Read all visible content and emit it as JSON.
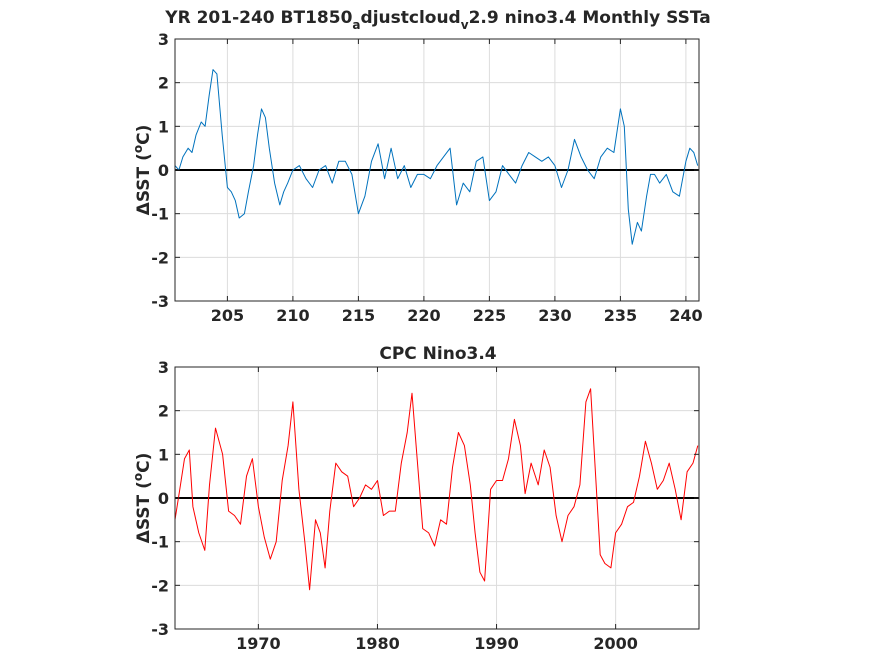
{
  "chart_data": [
    {
      "type": "line",
      "title_parts": [
        "YR 201-240 BT1850",
        "a",
        "djustcloud",
        "v",
        "2.9 nino3.4 Monthly SSTa"
      ],
      "ylabel": {
        "delta": "Δ",
        "main": "SST (",
        "sup": "o",
        "tail": "C)"
      },
      "xlim": [
        201,
        241
      ],
      "ylim": [
        -3,
        3
      ],
      "xticks": [
        "205",
        "210",
        "215",
        "220",
        "225",
        "230",
        "235",
        "240"
      ],
      "yticks": [
        "3",
        "2",
        "1",
        "0",
        "-1",
        "-2",
        "-3"
      ],
      "grid": true,
      "zero_line": true,
      "color": "#0072bd",
      "series": [
        {
          "x": [
            201.0,
            201.3,
            201.6,
            202.0,
            202.3,
            202.6,
            203.0,
            203.3,
            203.6,
            203.9,
            204.2,
            204.6,
            205.0,
            205.3,
            205.6,
            205.9,
            206.3,
            206.6,
            207.0,
            207.3,
            207.6,
            207.9,
            208.2,
            208.6,
            209.0,
            209.3,
            209.6,
            210.0,
            210.5,
            211.0,
            211.5,
            212.0,
            212.5,
            213.0,
            213.5,
            214.0,
            214.5,
            215.0,
            215.5,
            216.0,
            216.5,
            217.0,
            217.5,
            218.0,
            218.5,
            219.0,
            219.5,
            220.0,
            220.5,
            221.0,
            221.5,
            222.0,
            222.5,
            223.0,
            223.5,
            224.0,
            224.5,
            225.0,
            225.5,
            226.0,
            226.5,
            227.0,
            227.5,
            228.0,
            228.5,
            229.0,
            229.5,
            230.0,
            230.5,
            231.0,
            231.5,
            232.0,
            232.5,
            233.0,
            233.5,
            234.0,
            234.5,
            235.0,
            235.3,
            235.6,
            235.9,
            236.3,
            236.6,
            237.0,
            237.3,
            237.6,
            238.0,
            238.5,
            239.0,
            239.5,
            240.0,
            240.3,
            240.6,
            240.9
          ],
          "y": [
            0.1,
            0.0,
            0.3,
            0.5,
            0.4,
            0.8,
            1.1,
            1.0,
            1.7,
            2.3,
            2.2,
            0.8,
            -0.4,
            -0.5,
            -0.7,
            -1.1,
            -1.0,
            -0.5,
            0.1,
            0.8,
            1.4,
            1.2,
            0.5,
            -0.3,
            -0.8,
            -0.5,
            -0.3,
            0.0,
            0.1,
            -0.2,
            -0.4,
            0.0,
            0.1,
            -0.3,
            0.2,
            0.2,
            -0.1,
            -1.0,
            -0.6,
            0.2,
            0.6,
            -0.2,
            0.5,
            -0.2,
            0.1,
            -0.4,
            -0.1,
            -0.1,
            -0.2,
            0.1,
            0.3,
            0.5,
            -0.8,
            -0.3,
            -0.5,
            0.2,
            0.3,
            -0.7,
            -0.5,
            0.1,
            -0.1,
            -0.3,
            0.1,
            0.4,
            0.3,
            0.2,
            0.3,
            0.1,
            -0.4,
            0.0,
            0.7,
            0.3,
            0.0,
            -0.2,
            0.3,
            0.5,
            0.4,
            1.4,
            1.0,
            -0.9,
            -1.7,
            -1.2,
            -1.4,
            -0.6,
            -0.1,
            -0.1,
            -0.3,
            -0.1,
            -0.5,
            -0.6,
            0.2,
            0.5,
            0.4,
            0.1
          ]
        }
      ]
    },
    {
      "type": "line",
      "title": "CPC Nino3.4",
      "ylabel": {
        "delta": "Δ",
        "main": "SST (",
        "sup": "o",
        "tail": "C)"
      },
      "xlim": [
        1963,
        2007
      ],
      "ylim": [
        -3,
        3
      ],
      "xticks": [
        "1970",
        "1980",
        "1990",
        "2000"
      ],
      "yticks": [
        "3",
        "2",
        "1",
        "0",
        "-1",
        "-2",
        "-3"
      ],
      "grid": true,
      "zero_line": true,
      "color": "#ff0000",
      "series": [
        {
          "x": [
            1963.0,
            1963.4,
            1963.8,
            1964.2,
            1964.5,
            1965.0,
            1965.5,
            1965.9,
            1966.4,
            1967.0,
            1967.5,
            1968.0,
            1968.5,
            1969.0,
            1969.5,
            1970.0,
            1970.5,
            1971.0,
            1971.5,
            1972.0,
            1972.5,
            1972.9,
            1973.4,
            1973.9,
            1974.3,
            1974.8,
            1975.2,
            1975.6,
            1976.0,
            1976.5,
            1977.0,
            1977.5,
            1978.0,
            1978.5,
            1979.0,
            1979.5,
            1980.0,
            1980.5,
            1981.0,
            1981.5,
            1982.0,
            1982.5,
            1982.9,
            1983.3,
            1983.8,
            1984.3,
            1984.8,
            1985.3,
            1985.8,
            1986.3,
            1986.8,
            1987.3,
            1987.8,
            1988.2,
            1988.6,
            1989.0,
            1989.5,
            1990.0,
            1990.5,
            1991.0,
            1991.5,
            1992.0,
            1992.4,
            1992.9,
            1993.5,
            1994.0,
            1994.5,
            1995.0,
            1995.5,
            1996.0,
            1996.5,
            1997.0,
            1997.5,
            1997.9,
            1998.3,
            1998.7,
            1999.1,
            1999.6,
            2000.0,
            2000.5,
            2001.0,
            2001.5,
            2002.0,
            2002.5,
            2003.0,
            2003.5,
            2004.0,
            2004.5,
            2005.0,
            2005.5,
            2006.0,
            2006.5,
            2006.9
          ],
          "y": [
            -0.5,
            0.2,
            0.9,
            1.1,
            -0.2,
            -0.8,
            -1.2,
            0.3,
            1.6,
            1.0,
            -0.3,
            -0.4,
            -0.6,
            0.5,
            0.9,
            -0.2,
            -0.9,
            -1.4,
            -1.0,
            0.4,
            1.2,
            2.2,
            0.2,
            -1.0,
            -2.1,
            -0.5,
            -0.8,
            -1.6,
            -0.3,
            0.8,
            0.6,
            0.5,
            -0.2,
            0.0,
            0.3,
            0.2,
            0.4,
            -0.4,
            -0.3,
            -0.3,
            0.8,
            1.5,
            2.4,
            1.0,
            -0.7,
            -0.8,
            -1.1,
            -0.5,
            -0.6,
            0.7,
            1.5,
            1.2,
            0.3,
            -0.8,
            -1.7,
            -1.9,
            0.2,
            0.4,
            0.4,
            0.9,
            1.8,
            1.2,
            0.1,
            0.8,
            0.3,
            1.1,
            0.7,
            -0.4,
            -1.0,
            -0.4,
            -0.2,
            0.3,
            2.2,
            2.5,
            0.6,
            -1.3,
            -1.5,
            -1.6,
            -0.8,
            -0.6,
            -0.2,
            -0.1,
            0.5,
            1.3,
            0.8,
            0.2,
            0.4,
            0.8,
            0.2,
            -0.5,
            0.6,
            0.8,
            1.2
          ]
        }
      ]
    }
  ]
}
